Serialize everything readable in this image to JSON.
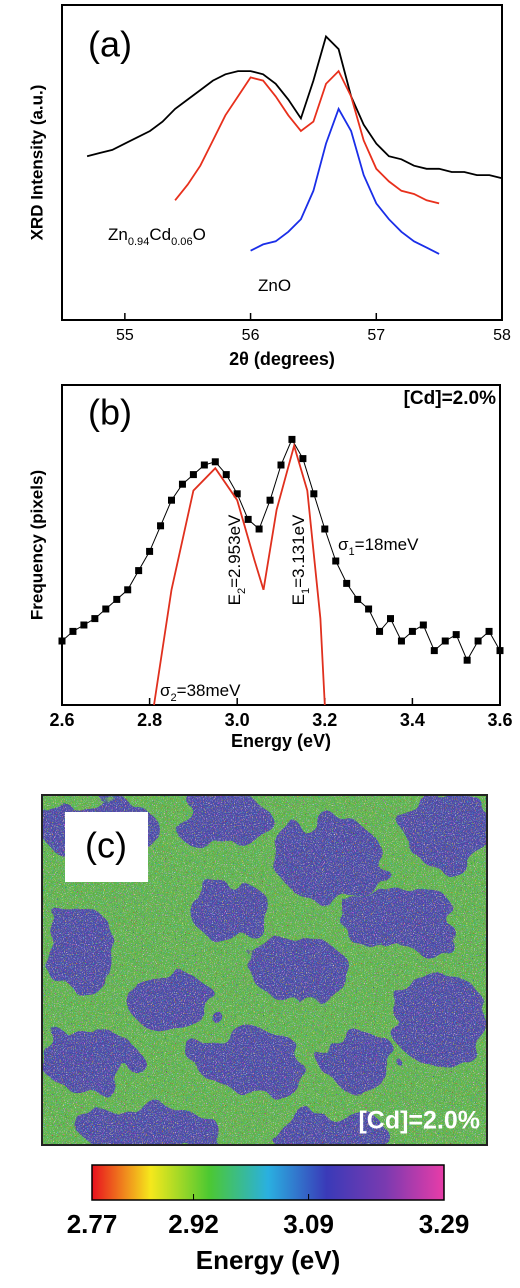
{
  "chart_data": [
    {
      "type": "line",
      "label": "(a)",
      "x_label": "2θ (degrees)",
      "y_label": "XRD Intensity (a.u.)",
      "x": [
        54.7,
        54.8,
        54.9,
        55,
        55.1,
        55.2,
        55.3,
        55.4,
        55.5,
        55.6,
        55.7,
        55.8,
        55.9,
        56,
        56.1,
        56.2,
        56.3,
        56.4,
        56.5,
        56.6,
        56.7,
        56.8,
        56.9,
        57,
        57.1,
        57.2,
        57.3,
        57.4,
        57.5,
        57.6,
        57.7,
        57.8,
        57.9,
        58
      ],
      "series": [
        {
          "color": "#000000",
          "values": [
            52,
            53,
            54,
            56,
            58,
            60,
            63,
            67,
            70,
            73,
            76,
            78,
            79,
            79,
            78,
            75,
            70,
            64,
            76,
            90,
            86,
            71,
            62,
            56,
            52,
            51,
            49,
            48,
            48,
            47,
            47,
            46,
            46,
            45
          ]
        },
        {
          "color": "#e8301c",
          "values": [
            null,
            null,
            null,
            null,
            null,
            null,
            null,
            38,
            43,
            49,
            57,
            65,
            71,
            77,
            76,
            71,
            65,
            60,
            63,
            75,
            79,
            71,
            57,
            48,
            44,
            41,
            40,
            38,
            37,
            null,
            null,
            null,
            null,
            null
          ]
        },
        {
          "color": "#1a2ee8",
          "values": [
            null,
            null,
            null,
            null,
            null,
            null,
            null,
            null,
            null,
            null,
            null,
            null,
            null,
            22,
            24,
            25,
            28,
            32,
            41,
            56,
            67,
            60,
            46,
            37,
            32,
            28,
            25,
            23,
            21,
            null,
            null,
            null,
            null,
            null
          ]
        }
      ],
      "xlim": [
        54.5,
        58
      ],
      "xticks": [
        55,
        56,
        57,
        58
      ],
      "ylim": [
        0,
        100
      ],
      "annotations": [
        [
          "Zn",
          "0.94",
          "Cd",
          "0.06",
          "O"
        ],
        [
          "ZnO"
        ]
      ]
    },
    {
      "type": "scatter",
      "label": "(b)",
      "title": "[Cd]=2.0%",
      "x_label": "Energy (eV)",
      "y_label": "Frequency (pixels)",
      "series": [
        {
          "color": "#000000",
          "marker": "square",
          "x": [
            2.6,
            2.625,
            2.65,
            2.675,
            2.7,
            2.725,
            2.75,
            2.775,
            2.8,
            2.825,
            2.85,
            2.875,
            2.9,
            2.925,
            2.95,
            2.975,
            3,
            3.025,
            3.05,
            3.075,
            3.1,
            3.125,
            3.15,
            3.175,
            3.2,
            3.225,
            3.25,
            3.275,
            3.3,
            3.325,
            3.35,
            3.375,
            3.4,
            3.425,
            3.45,
            3.475,
            3.5,
            3.525,
            3.55,
            3.575,
            3.6
          ],
          "values": [
            20,
            23,
            25,
            27,
            30,
            33,
            36,
            42,
            48,
            56,
            64,
            69,
            72,
            75,
            76,
            72,
            66,
            58,
            55,
            64,
            75,
            83,
            77,
            66,
            55,
            45,
            38,
            33,
            30,
            23,
            27,
            20,
            23,
            25,
            17,
            20,
            22,
            14,
            20,
            23,
            17
          ]
        },
        {
          "color": "#e0301e",
          "x": [
            2.81,
            2.85,
            2.9,
            2.95,
            3,
            3.04,
            3.06
          ],
          "values": [
            0,
            36,
            67,
            74,
            64,
            45,
            36
          ]
        },
        {
          "color": "#e0301e",
          "x": [
            3.06,
            3.09,
            3.13,
            3.16,
            3.19,
            3.2
          ],
          "values": [
            36,
            61,
            81,
            67,
            27,
            0
          ]
        }
      ],
      "xlim": [
        2.6,
        3.6
      ],
      "xticks": [
        2.6,
        2.8,
        {
          "value": 3,
          "label": "3.0"
        },
        3.2,
        3.4,
        3.6
      ],
      "ylim": [
        0,
        100
      ],
      "annotations": [
        [
          "E",
          "2",
          "=2.953eV"
        ],
        [
          "E",
          "1",
          "=3.131eV"
        ],
        [
          "σ",
          "1",
          "=18meV"
        ],
        [
          "σ",
          "2",
          "=38meV"
        ]
      ]
    },
    {
      "type": "colorbar",
      "label": "(c)",
      "title": "[Cd]=2.0%",
      "x_label": "Energy (eV)",
      "xlim": [
        2.77,
        3.29
      ],
      "xticks": [
        2.77,
        2.92,
        3.09,
        3.29
      ],
      "colors": [
        "#e8101e",
        "#f5e81c",
        "#4cc832",
        "#2ab0e0",
        "#3a3ab8",
        "#7a3ab0",
        "#e83ca8"
      ]
    }
  ]
}
